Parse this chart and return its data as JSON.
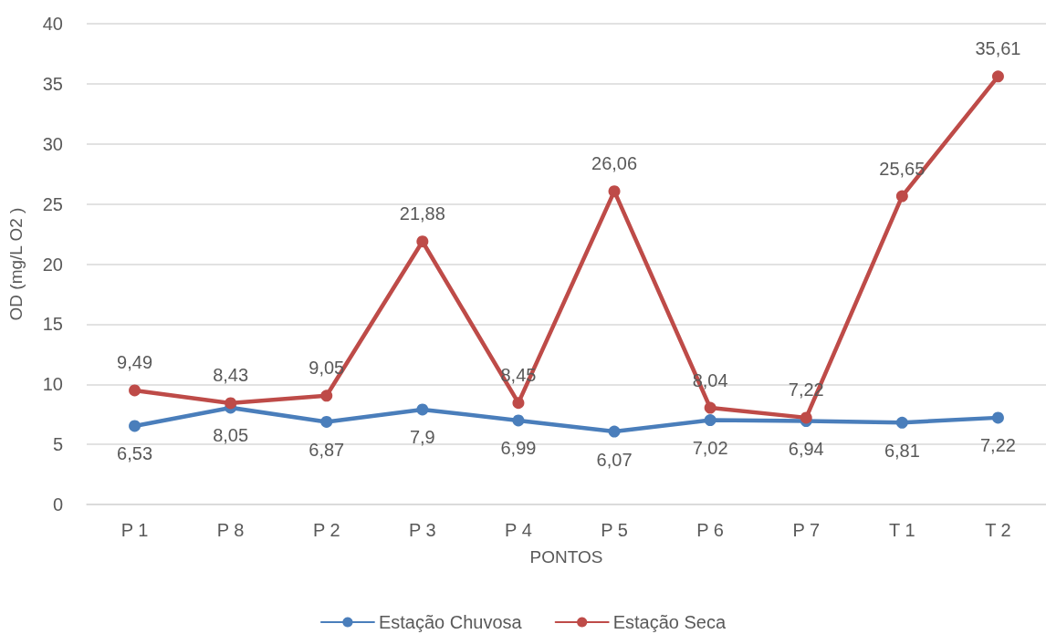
{
  "chart_data": {
    "type": "line",
    "xlabel": "PONTOS",
    "ylabel": "OD (mg/L O2 )",
    "categories": [
      "P 1",
      "P 8",
      "P 2",
      "P 3",
      "P 4",
      "P 5",
      "P 6",
      "P 7",
      "T 1",
      "T 2"
    ],
    "series": [
      {
        "name": "Estação Chuvosa",
        "color": "#4a7ebb",
        "values": [
          6.53,
          8.05,
          6.87,
          7.9,
          6.99,
          6.07,
          7.02,
          6.94,
          6.81,
          7.22
        ],
        "value_labels": [
          "6,53",
          "8,05",
          "6,87",
          "7,9",
          "6,99",
          "6,07",
          "7,02",
          "6,94",
          "6,81",
          "7,22"
        ]
      },
      {
        "name": "Estação Seca",
        "color": "#be4b48",
        "values": [
          9.49,
          8.43,
          9.05,
          21.88,
          8.45,
          26.06,
          8.04,
          7.22,
          25.65,
          35.61
        ],
        "value_labels": [
          "9,49",
          "8,43",
          "9,05",
          "21,88",
          "8,45",
          "26,06",
          "8,04",
          "7,22",
          "25,65",
          "35,61"
        ]
      }
    ],
    "ylim": [
      0,
      40
    ],
    "yticks": [
      0,
      5,
      10,
      15,
      20,
      25,
      30,
      35,
      40
    ],
    "grid": "y",
    "legend": "bottom",
    "marker": "circle",
    "line_style": "solid"
  }
}
